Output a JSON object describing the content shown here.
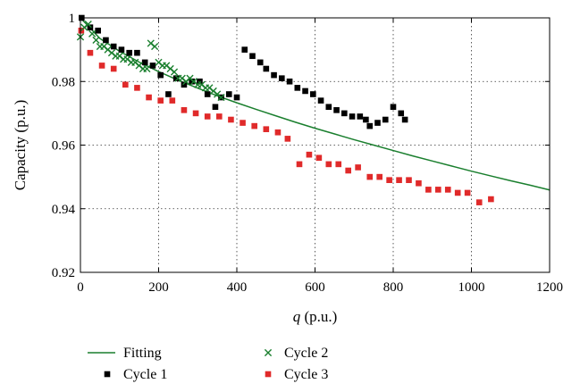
{
  "chart_data": {
    "type": "scatter",
    "title": "",
    "xlabel_var": "q",
    "xlabel_unit": " (p.u.)",
    "ylabel": "Capacity (p.u.)",
    "xlim": [
      0,
      1200
    ],
    "ylim": [
      0.92,
      1.0
    ],
    "xticks": [
      0,
      200,
      400,
      600,
      800,
      1000,
      1200
    ],
    "yticks": [
      0.92,
      0.94,
      0.96,
      0.98,
      1.0
    ],
    "xtick_labels": [
      "0",
      "200",
      "400",
      "600",
      "800",
      "1000",
      "1200"
    ],
    "ytick_labels": [
      "0.92",
      "0.94",
      "0.96",
      "0.98",
      "1"
    ],
    "grid": true,
    "legend_position": "bottom",
    "series": [
      {
        "name": "Fitting",
        "kind": "line",
        "color": "#1a7f2e",
        "x": [
          0,
          50,
          100,
          150,
          200,
          250,
          300,
          350,
          400,
          450,
          500,
          550,
          600,
          650,
          700,
          750,
          800,
          850,
          900,
          950,
          1000,
          1050,
          1100,
          1150,
          1200
        ],
        "y": [
          1.0,
          0.9935,
          0.9895,
          0.9861,
          0.9831,
          0.9804,
          0.9779,
          0.9755,
          0.9733,
          0.9712,
          0.9692,
          0.9672,
          0.9653,
          0.9635,
          0.9617,
          0.96,
          0.9583,
          0.9566,
          0.955,
          0.9534,
          0.9518,
          0.9503,
          0.9488,
          0.9474,
          0.9459
        ]
      },
      {
        "name": "Cycle 1",
        "kind": "square",
        "color": "#000000",
        "x": [
          3,
          25,
          45,
          65,
          85,
          105,
          125,
          145,
          165,
          185,
          205,
          225,
          245,
          265,
          285,
          305,
          325,
          345,
          360,
          380,
          400,
          420,
          440,
          460,
          475,
          495,
          515,
          535,
          555,
          575,
          595,
          615,
          635,
          655,
          675,
          695,
          715,
          730,
          740,
          760,
          780,
          800,
          820,
          830
        ],
        "y": [
          1.0,
          0.997,
          0.996,
          0.993,
          0.991,
          0.99,
          0.989,
          0.989,
          0.986,
          0.985,
          0.982,
          0.976,
          0.981,
          0.979,
          0.98,
          0.98,
          0.976,
          0.972,
          0.975,
          0.976,
          0.975,
          0.99,
          0.988,
          0.986,
          0.984,
          0.982,
          0.981,
          0.98,
          0.978,
          0.977,
          0.976,
          0.974,
          0.972,
          0.971,
          0.97,
          0.969,
          0.969,
          0.968,
          0.966,
          0.967,
          0.968,
          0.972,
          0.97,
          0.968
        ]
      },
      {
        "name": "Cycle 2",
        "kind": "x",
        "color": "#1a7f2e",
        "x": [
          0,
          10,
          20,
          30,
          40,
          50,
          60,
          70,
          80,
          90,
          100,
          110,
          120,
          130,
          140,
          150,
          160,
          170,
          180,
          190,
          200,
          210,
          220,
          230,
          240,
          250,
          260,
          270,
          280,
          290,
          300,
          310,
          320,
          330,
          340,
          350,
          360
        ],
        "y": [
          0.994,
          0.997,
          0.998,
          0.995,
          0.993,
          0.991,
          0.991,
          0.99,
          0.989,
          0.988,
          0.988,
          0.987,
          0.987,
          0.986,
          0.986,
          0.985,
          0.984,
          0.984,
          0.992,
          0.991,
          0.986,
          0.985,
          0.985,
          0.984,
          0.983,
          0.981,
          0.981,
          0.98,
          0.981,
          0.98,
          0.979,
          0.979,
          0.978,
          0.978,
          0.977,
          0.976,
          0.975
        ]
      },
      {
        "name": "Cycle 3",
        "kind": "square",
        "color": "#e02a2a",
        "x": [
          2,
          25,
          55,
          85,
          115,
          145,
          175,
          205,
          235,
          265,
          295,
          325,
          355,
          385,
          415,
          445,
          475,
          505,
          530,
          560,
          585,
          610,
          635,
          660,
          685,
          710,
          740,
          765,
          790,
          815,
          840,
          865,
          890,
          915,
          940,
          965,
          990,
          1020,
          1050
        ],
        "y": [
          0.996,
          0.989,
          0.985,
          0.984,
          0.979,
          0.978,
          0.975,
          0.974,
          0.974,
          0.971,
          0.97,
          0.969,
          0.969,
          0.968,
          0.967,
          0.966,
          0.965,
          0.964,
          0.962,
          0.954,
          0.957,
          0.956,
          0.954,
          0.954,
          0.952,
          0.953,
          0.95,
          0.95,
          0.949,
          0.949,
          0.949,
          0.948,
          0.946,
          0.946,
          0.946,
          0.945,
          0.945,
          0.942,
          0.943
        ]
      }
    ]
  }
}
